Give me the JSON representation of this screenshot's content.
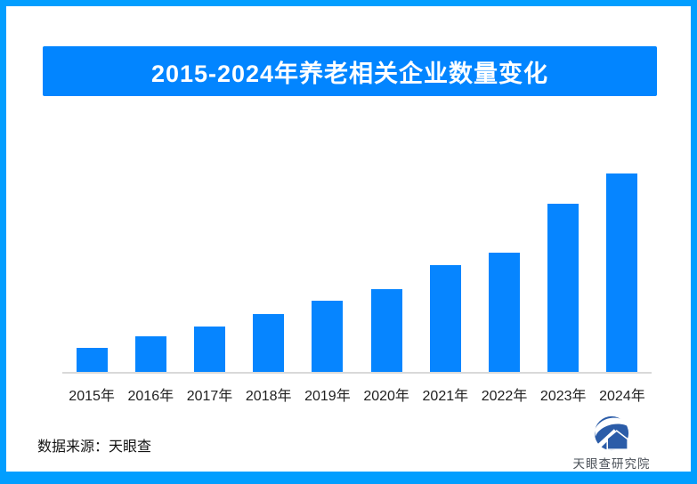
{
  "frame": {
    "border_color": "#029eff",
    "background": "#ffffff"
  },
  "header": {
    "title": "2015-2024年养老相关企业数量变化",
    "background": "#0285ff",
    "text_color": "#ffffff"
  },
  "chart_data": {
    "type": "bar",
    "title": "2015-2024年养老相关企业数量变化",
    "categories": [
      "2015年",
      "2016年",
      "2017年",
      "2018年",
      "2019年",
      "2020年",
      "2021年",
      "2022年",
      "2023年",
      "2024年"
    ],
    "values": [
      12,
      18,
      23,
      29,
      36,
      42,
      54,
      60,
      85,
      100
    ],
    "xlabel": "",
    "ylabel": "",
    "ylim": [
      0,
      105
    ],
    "value_scale": "relative height, % of tallest (2024) bar; no numeric y-axis or data labels shown",
    "grid": "off",
    "legend": "none",
    "bar_color": "#0685ff",
    "axis_line_color": "#d9d9d9",
    "label_color": "#1f1f1f"
  },
  "footer": {
    "source_label": "数据来源：天眼查"
  },
  "logo": {
    "text": "天眼查研究院",
    "mark_color": "#2b5ca8",
    "text_color": "#4a5058"
  }
}
